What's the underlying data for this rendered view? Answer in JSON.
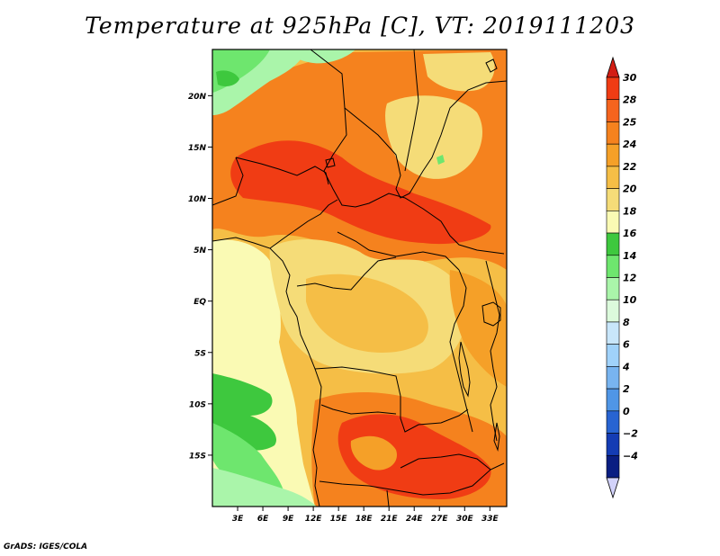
{
  "title": "Temperature at 925hPa [C], VT: 2019111203",
  "credit": "GrADS: IGES/COLA",
  "map": {
    "lat_labels": [
      "20N",
      "15N",
      "10N",
      "5N",
      "EQ",
      "5S",
      "10S",
      "15S"
    ],
    "lat_values": [
      20,
      15,
      10,
      5,
      0,
      -5,
      -10,
      -15
    ],
    "lon_labels": [
      "3E",
      "6E",
      "9E",
      "12E",
      "15E",
      "18E",
      "21E",
      "24E",
      "27E",
      "30E",
      "33E"
    ],
    "lon_values": [
      3,
      6,
      9,
      12,
      15,
      18,
      21,
      24,
      27,
      30,
      33
    ],
    "lat_range": [
      -20,
      24.5
    ],
    "lon_range": [
      0,
      35
    ]
  },
  "colorbar": {
    "labels": [
      "30",
      "28",
      "25",
      "24",
      "22",
      "20",
      "18",
      "16",
      "14",
      "12",
      "10",
      "8",
      "6",
      "4",
      "2",
      "0",
      "−2",
      "−4"
    ],
    "colors": [
      "#f03c14",
      "#f5641e",
      "#f5821e",
      "#f5a028",
      "#f5be46",
      "#f5dc78",
      "#fafab4",
      "#3ec83e",
      "#6ee66e",
      "#aaf5aa",
      "#dcfadc",
      "#c8e6fa",
      "#a0d2fa",
      "#78b4f0",
      "#5096e6",
      "#2864d2",
      "#143cb4",
      "#0a1e82"
    ],
    "max_arrow_color": "#d21e14",
    "min_arrow_color": "#d2d2fa"
  },
  "colors": {
    "hot": "#f03c14",
    "warm": "#f5821e",
    "mild": "#f5a028",
    "moderate": "#f5be46",
    "pale": "#f5dc78",
    "cool": "#fafab4",
    "green": "#3ec83e",
    "light_green": "#6ee66e",
    "pale_green": "#aaf5aa"
  }
}
